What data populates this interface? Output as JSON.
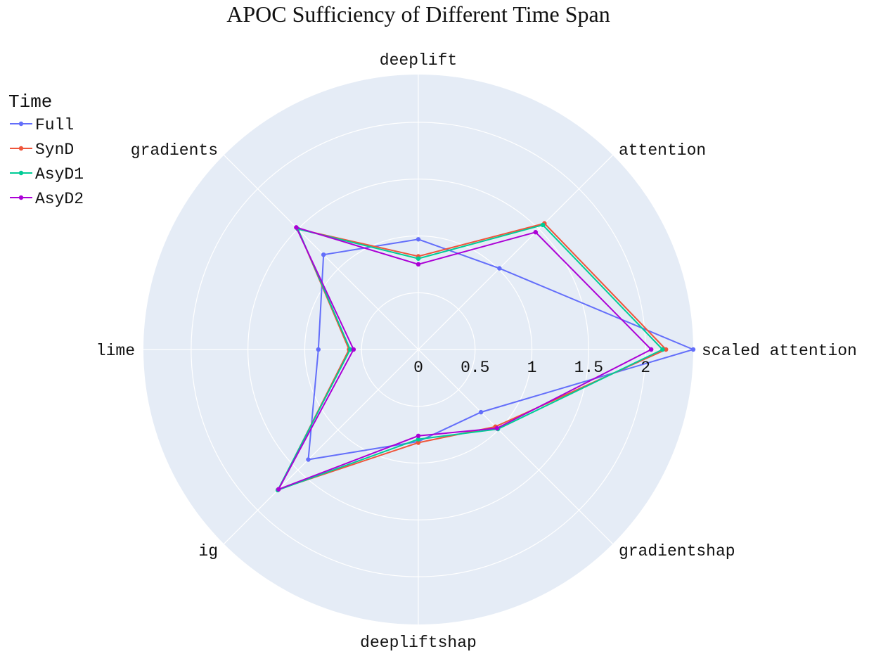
{
  "chart_data": {
    "type": "radar",
    "title": "APOC Sufficiency of Different Time Span",
    "axes": [
      "scaled attention",
      "attention",
      "deeplift",
      "gradients",
      "lime",
      "ig",
      "deepliftshap",
      "gradientshap"
    ],
    "radial_range": [
      0,
      2.42
    ],
    "radial_ticks": [
      0,
      0.5,
      1,
      1.5,
      2
    ],
    "radial_tick_labels": [
      "0",
      "0.5",
      "1",
      "1.5",
      "2"
    ],
    "grid": true,
    "legend": {
      "title": "Time",
      "position": "top-left"
    },
    "series": [
      {
        "name": "Full",
        "color": "#636efa",
        "values": [
          2.42,
          1.01,
          0.97,
          1.18,
          0.88,
          1.37,
          0.81,
          0.78
        ]
      },
      {
        "name": "SynD",
        "color": "#ef553b",
        "values": [
          2.18,
          1.57,
          0.82,
          1.5,
          0.61,
          1.74,
          0.82,
          0.96
        ]
      },
      {
        "name": "AsyD1",
        "color": "#00cc96",
        "values": [
          2.15,
          1.55,
          0.8,
          1.5,
          0.6,
          1.75,
          0.79,
          0.99
        ]
      },
      {
        "name": "AsyD2",
        "color": "#ab00d6",
        "values": [
          2.05,
          1.46,
          0.75,
          1.52,
          0.57,
          1.74,
          0.76,
          0.98
        ]
      }
    ]
  }
}
